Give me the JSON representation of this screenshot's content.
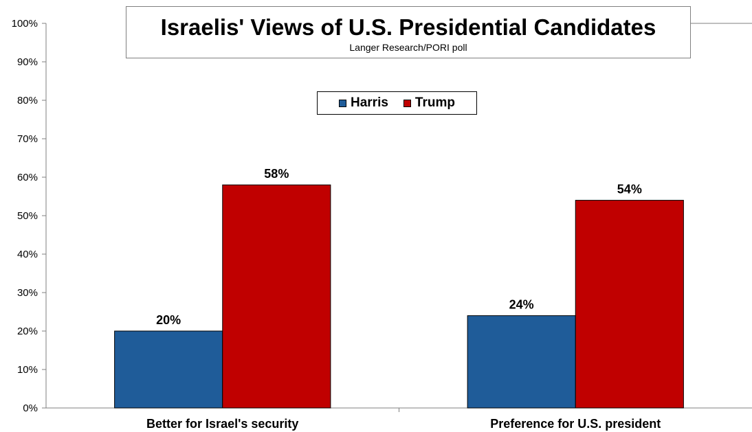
{
  "chart_data": {
    "type": "bar",
    "title": "Israelis' Views of U.S. Presidential Candidates",
    "subtitle": "Langer Research/PORI poll",
    "categories": [
      "Better for Israel's security",
      "Preference for U.S. president"
    ],
    "series": [
      {
        "name": "Harris",
        "color": "#1F5C99",
        "values": [
          20,
          24
        ]
      },
      {
        "name": "Trump",
        "color": "#C00000",
        "values": [
          58,
          54
        ]
      }
    ],
    "data_labels": [
      [
        "20%",
        "24%"
      ],
      [
        "58%",
        "54%"
      ]
    ],
    "ylim": [
      0,
      100
    ],
    "yticks": [
      "0%",
      "10%",
      "20%",
      "30%",
      "40%",
      "50%",
      "60%",
      "70%",
      "80%",
      "90%",
      "100%"
    ],
    "xlabel": "",
    "ylabel": "",
    "grid": false,
    "legend_position": "top-center"
  }
}
